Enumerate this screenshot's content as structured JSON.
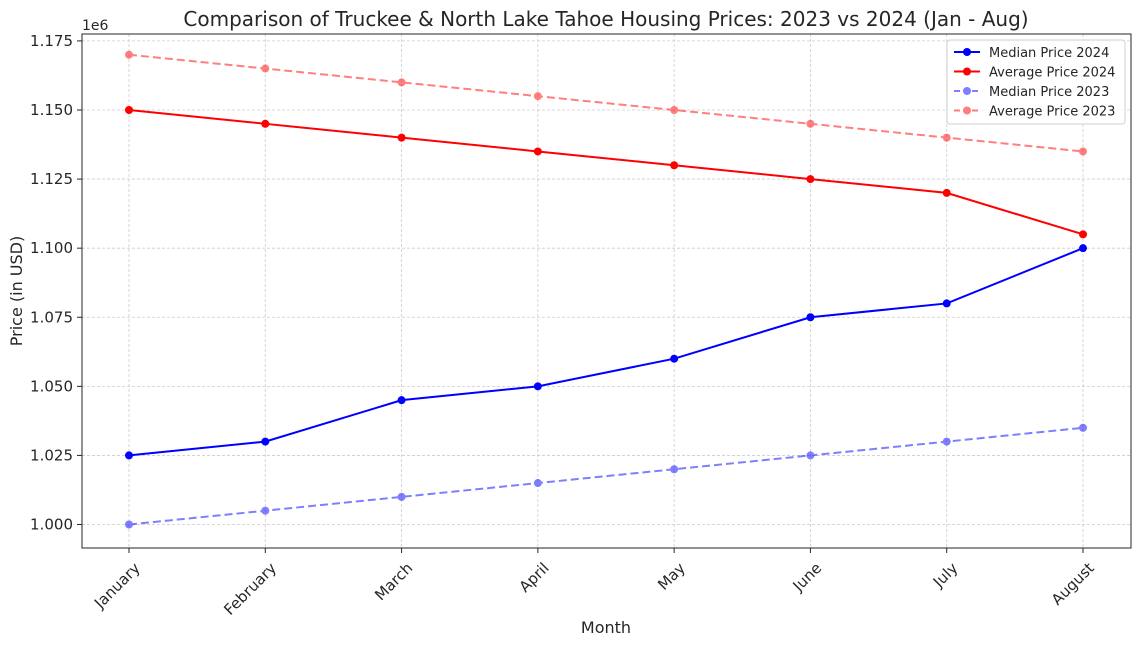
{
  "chart_data": {
    "type": "line",
    "title": "Comparison of Truckee & North Lake Tahoe Housing Prices: 2023 vs 2024 (Jan - Aug)",
    "xlabel": "Month",
    "ylabel": "Price (in USD)",
    "y_scale_label": "1e6",
    "categories": [
      "January",
      "February",
      "March",
      "April",
      "May",
      "June",
      "July",
      "August"
    ],
    "ylim": [
      0.9915,
      1.1775
    ],
    "yticks": [
      1.0,
      1.025,
      1.05,
      1.075,
      1.1,
      1.125,
      1.15,
      1.175
    ],
    "ytick_labels": [
      "1.000",
      "1.025",
      "1.050",
      "1.075",
      "1.100",
      "1.125",
      "1.150",
      "1.175"
    ],
    "grid": true,
    "legend_position": "top-right",
    "series": [
      {
        "name": "Median Price 2024",
        "color": "#0000ff",
        "dashed": false,
        "opacity": 1.0,
        "values": [
          1.025,
          1.03,
          1.045,
          1.05,
          1.06,
          1.075,
          1.08,
          1.1
        ]
      },
      {
        "name": "Average Price 2024",
        "color": "#ff0000",
        "dashed": false,
        "opacity": 1.0,
        "values": [
          1.15,
          1.145,
          1.14,
          1.135,
          1.13,
          1.125,
          1.12,
          1.105
        ]
      },
      {
        "name": "Median Price 2023",
        "color": "#0000ff",
        "dashed": true,
        "opacity": 0.5,
        "values": [
          1.0,
          1.005,
          1.01,
          1.015,
          1.02,
          1.025,
          1.03,
          1.035
        ]
      },
      {
        "name": "Average Price 2023",
        "color": "#ff0000",
        "dashed": true,
        "opacity": 0.5,
        "values": [
          1.17,
          1.165,
          1.16,
          1.155,
          1.15,
          1.145,
          1.14,
          1.135
        ]
      }
    ]
  }
}
